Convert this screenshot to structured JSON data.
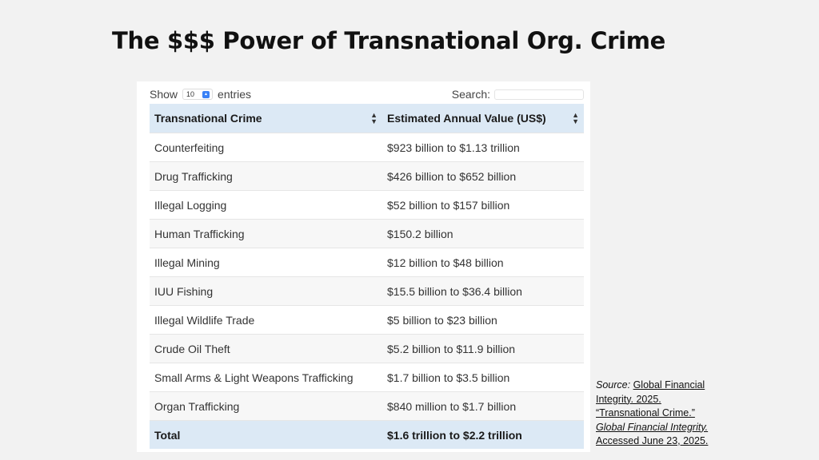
{
  "slide": {
    "title": "The $$$ Power of Transnational Org. Crime"
  },
  "controls": {
    "show_label": "Show",
    "entries_value": "10",
    "entries_label": "entries",
    "search_label": "Search:",
    "search_value": ""
  },
  "table": {
    "headers": [
      "Transnational Crime",
      "Estimated Annual Value (US$)"
    ],
    "rows": [
      [
        "Counterfeiting",
        "$923 billion to $1.13 trillion"
      ],
      [
        "Drug Trafficking",
        "$426 billion to $652 billion"
      ],
      [
        "Illegal Logging",
        "$52 billion to $157 billion"
      ],
      [
        "Human Trafficking",
        "$150.2 billion"
      ],
      [
        "Illegal Mining",
        "$12 billion to $48 billion"
      ],
      [
        "IUU Fishing",
        "$15.5 billion to $36.4 billion"
      ],
      [
        "Illegal Wildlife Trade",
        "$5 billion to $23 billion"
      ],
      [
        "Crude Oil Theft",
        "$5.2 billion to $11.9 billion"
      ],
      [
        "Small Arms & Light Weapons Trafficking",
        "$1.7 billion to $3.5 billion"
      ],
      [
        "Organ Trafficking",
        "$840 million to $1.7 billion"
      ]
    ],
    "total": [
      "Total",
      "$1.6 trillion to $2.2 trillion"
    ]
  },
  "source": {
    "prefix": "Source:",
    "line1": "Global Financial",
    "line2": "Integrity. 2025.",
    "line3": "“Transnational Crime.”",
    "line4": "Global Financial Integrity.",
    "line5": "Accessed June 23, 2025."
  },
  "colors": {
    "header_bg": "#dce9f5",
    "select_accent": "#3b82f6"
  }
}
